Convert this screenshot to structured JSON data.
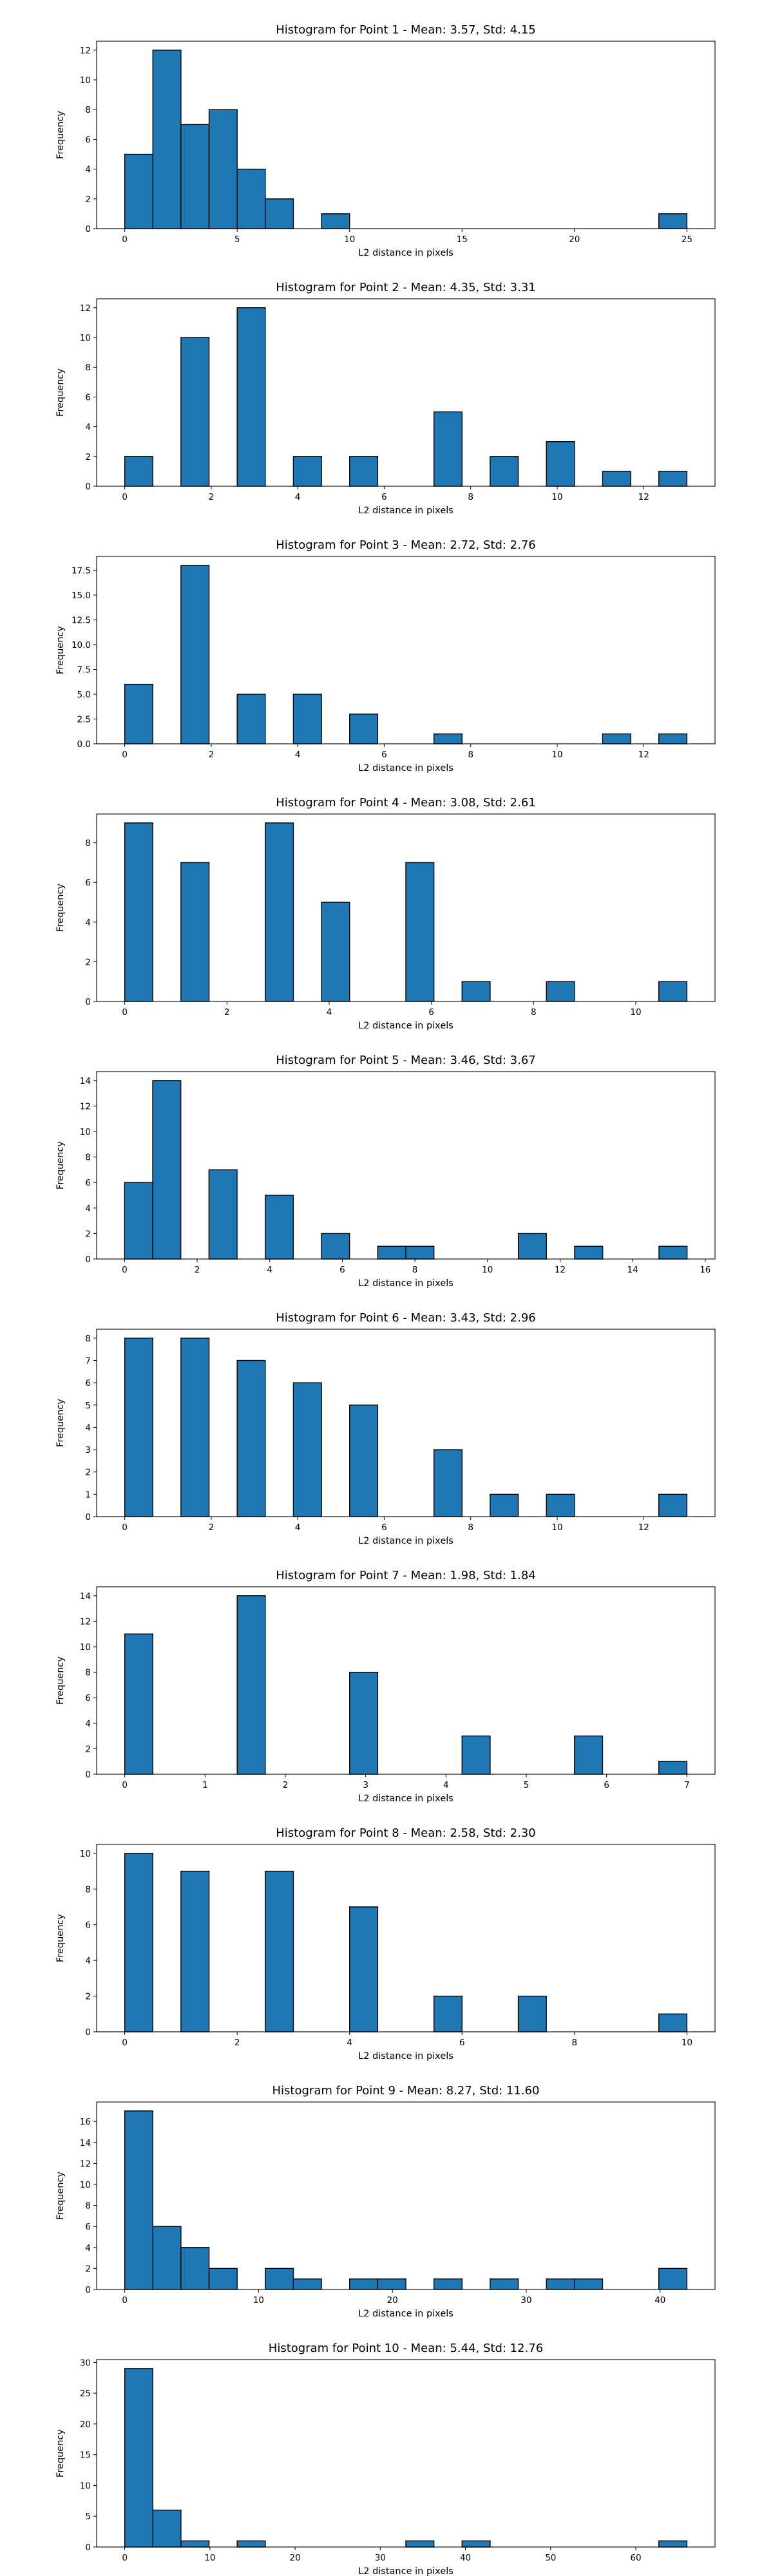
{
  "chart_data": [
    {
      "type": "bar",
      "title": "Histogram for Point 1 - Mean: 3.57, Std: 4.15",
      "xlabel": "L2 distance in pixels",
      "ylabel": "Frequency",
      "xlim": [
        -1.25,
        26.25
      ],
      "ylim": [
        0,
        12.6
      ],
      "xticks": [
        0,
        5,
        10,
        15,
        20,
        25
      ],
      "xtick_labels": [
        "0",
        "5",
        "10",
        "15",
        "20",
        "25"
      ],
      "yticks": [
        0,
        2,
        4,
        6,
        8,
        10,
        12
      ],
      "ytick_labels": [
        "0",
        "2",
        "4",
        "6",
        "8",
        "10",
        "12"
      ],
      "bins": [
        {
          "x0": 0,
          "x1": 1.25,
          "value": 5
        },
        {
          "x0": 1.25,
          "x1": 2.5,
          "value": 12
        },
        {
          "x0": 2.5,
          "x1": 3.75,
          "value": 7
        },
        {
          "x0": 3.75,
          "x1": 5,
          "value": 8
        },
        {
          "x0": 5,
          "x1": 6.25,
          "value": 4
        },
        {
          "x0": 6.25,
          "x1": 7.5,
          "value": 2
        },
        {
          "x0": 8.75,
          "x1": 10,
          "value": 1
        },
        {
          "x0": 23.75,
          "x1": 25,
          "value": 1
        }
      ]
    },
    {
      "type": "bar",
      "title": "Histogram for Point 2 - Mean: 4.35, Std: 3.31",
      "xlabel": "L2 distance in pixels",
      "ylabel": "Frequency",
      "xlim": [
        -0.65,
        13.65
      ],
      "ylim": [
        0,
        12.6
      ],
      "xticks": [
        0,
        2,
        4,
        6,
        8,
        10,
        12
      ],
      "xtick_labels": [
        "0",
        "2",
        "4",
        "6",
        "8",
        "10",
        "12"
      ],
      "yticks": [
        0,
        2,
        4,
        6,
        8,
        10,
        12
      ],
      "ytick_labels": [
        "0",
        "2",
        "4",
        "6",
        "8",
        "10",
        "12"
      ],
      "bins": [
        {
          "x0": 0,
          "x1": 0.65,
          "value": 2
        },
        {
          "x0": 1.3,
          "x1": 1.95,
          "value": 10
        },
        {
          "x0": 2.6,
          "x1": 3.25,
          "value": 12
        },
        {
          "x0": 3.9,
          "x1": 4.55,
          "value": 2
        },
        {
          "x0": 5.2,
          "x1": 5.85,
          "value": 2
        },
        {
          "x0": 7.15,
          "x1": 7.8,
          "value": 5
        },
        {
          "x0": 8.45,
          "x1": 9.1,
          "value": 2
        },
        {
          "x0": 9.75,
          "x1": 10.4,
          "value": 3
        },
        {
          "x0": 11.05,
          "x1": 11.7,
          "value": 1
        },
        {
          "x0": 12.35,
          "x1": 13,
          "value": 1
        }
      ]
    },
    {
      "type": "bar",
      "title": "Histogram for Point 3 - Mean: 2.72, Std: 2.76",
      "xlabel": "L2 distance in pixels",
      "ylabel": "Frequency",
      "xlim": [
        -0.65,
        13.65
      ],
      "ylim": [
        0,
        18.9
      ],
      "xticks": [
        0,
        2,
        4,
        6,
        8,
        10,
        12
      ],
      "xtick_labels": [
        "0",
        "2",
        "4",
        "6",
        "8",
        "10",
        "12"
      ],
      "yticks": [
        0,
        2.5,
        5,
        7.5,
        10,
        12.5,
        15,
        17.5
      ],
      "ytick_labels": [
        "0.0",
        "2.5",
        "5.0",
        "7.5",
        "10.0",
        "12.5",
        "15.0",
        "17.5"
      ],
      "bins": [
        {
          "x0": 0,
          "x1": 0.65,
          "value": 6
        },
        {
          "x0": 1.3,
          "x1": 1.95,
          "value": 18
        },
        {
          "x0": 2.6,
          "x1": 3.25,
          "value": 5
        },
        {
          "x0": 3.9,
          "x1": 4.55,
          "value": 5
        },
        {
          "x0": 5.2,
          "x1": 5.85,
          "value": 3
        },
        {
          "x0": 7.15,
          "x1": 7.8,
          "value": 1
        },
        {
          "x0": 11.05,
          "x1": 11.7,
          "value": 1
        },
        {
          "x0": 12.35,
          "x1": 13,
          "value": 1
        }
      ]
    },
    {
      "type": "bar",
      "title": "Histogram for Point 4 - Mean: 3.08, Std: 2.61",
      "xlabel": "L2 distance in pixels",
      "ylabel": "Frequency",
      "xlim": [
        -0.55,
        11.55
      ],
      "ylim": [
        0,
        9.45
      ],
      "xticks": [
        0,
        2,
        4,
        6,
        8,
        10
      ],
      "xtick_labels": [
        "0",
        "2",
        "4",
        "6",
        "8",
        "10"
      ],
      "yticks": [
        0,
        2,
        4,
        6,
        8
      ],
      "ytick_labels": [
        "0",
        "2",
        "4",
        "6",
        "8"
      ],
      "bins": [
        {
          "x0": 0,
          "x1": 0.55,
          "value": 9
        },
        {
          "x0": 1.1,
          "x1": 1.65,
          "value": 7
        },
        {
          "x0": 2.75,
          "x1": 3.3,
          "value": 9
        },
        {
          "x0": 3.85,
          "x1": 4.4,
          "value": 5
        },
        {
          "x0": 5.5,
          "x1": 6.05,
          "value": 7
        },
        {
          "x0": 6.6,
          "x1": 7.15,
          "value": 1
        },
        {
          "x0": 8.25,
          "x1": 8.8,
          "value": 1
        },
        {
          "x0": 10.45,
          "x1": 11,
          "value": 1
        }
      ]
    },
    {
      "type": "bar",
      "title": "Histogram for Point 5 - Mean: 3.46, Std: 3.67",
      "xlabel": "L2 distance in pixels",
      "ylabel": "Frequency",
      "xlim": [
        -0.77,
        16.27
      ],
      "ylim": [
        0,
        14.7
      ],
      "xticks": [
        0,
        2,
        4,
        6,
        8,
        10,
        12,
        14,
        16
      ],
      "xtick_labels": [
        "0",
        "2",
        "4",
        "6",
        "8",
        "10",
        "12",
        "14",
        "16"
      ],
      "yticks": [
        0,
        2,
        4,
        6,
        8,
        10,
        12,
        14
      ],
      "ytick_labels": [
        "0",
        "2",
        "4",
        "6",
        "8",
        "10",
        "12",
        "14"
      ],
      "bins": [
        {
          "x0": 0,
          "x1": 0.775,
          "value": 6
        },
        {
          "x0": 0.775,
          "x1": 1.55,
          "value": 14
        },
        {
          "x0": 2.325,
          "x1": 3.1,
          "value": 7
        },
        {
          "x0": 3.875,
          "x1": 4.65,
          "value": 5
        },
        {
          "x0": 5.425,
          "x1": 6.2,
          "value": 2
        },
        {
          "x0": 6.975,
          "x1": 7.75,
          "value": 1
        },
        {
          "x0": 7.75,
          "x1": 8.525,
          "value": 1
        },
        {
          "x0": 10.85,
          "x1": 11.625,
          "value": 2
        },
        {
          "x0": 12.4,
          "x1": 13.175,
          "value": 1
        },
        {
          "x0": 14.725,
          "x1": 15.5,
          "value": 1
        }
      ]
    },
    {
      "type": "bar",
      "title": "Histogram for Point 6 - Mean: 3.43, Std: 2.96",
      "xlabel": "L2 distance in pixels",
      "ylabel": "Frequency",
      "xlim": [
        -0.65,
        13.65
      ],
      "ylim": [
        0,
        8.4
      ],
      "xticks": [
        0,
        2,
        4,
        6,
        8,
        10,
        12
      ],
      "xtick_labels": [
        "0",
        "2",
        "4",
        "6",
        "8",
        "10",
        "12"
      ],
      "yticks": [
        0,
        1,
        2,
        3,
        4,
        5,
        6,
        7,
        8
      ],
      "ytick_labels": [
        "0",
        "1",
        "2",
        "3",
        "4",
        "5",
        "6",
        "7",
        "8"
      ],
      "bins": [
        {
          "x0": 0,
          "x1": 0.65,
          "value": 8
        },
        {
          "x0": 1.3,
          "x1": 1.95,
          "value": 8
        },
        {
          "x0": 2.6,
          "x1": 3.25,
          "value": 7
        },
        {
          "x0": 3.9,
          "x1": 4.55,
          "value": 6
        },
        {
          "x0": 5.2,
          "x1": 5.85,
          "value": 5
        },
        {
          "x0": 7.15,
          "x1": 7.8,
          "value": 3
        },
        {
          "x0": 8.45,
          "x1": 9.1,
          "value": 1
        },
        {
          "x0": 9.75,
          "x1": 10.4,
          "value": 1
        },
        {
          "x0": 12.35,
          "x1": 13,
          "value": 1
        }
      ]
    },
    {
      "type": "bar",
      "title": "Histogram for Point 7 - Mean: 1.98, Std: 1.84",
      "xlabel": "L2 distance in pixels",
      "ylabel": "Frequency",
      "xlim": [
        -0.35,
        7.35
      ],
      "ylim": [
        0,
        14.7
      ],
      "xticks": [
        0,
        1,
        2,
        3,
        4,
        5,
        6,
        7
      ],
      "xtick_labels": [
        "0",
        "1",
        "2",
        "3",
        "4",
        "5",
        "6",
        "7"
      ],
      "yticks": [
        0,
        2,
        4,
        6,
        8,
        10,
        12,
        14
      ],
      "ytick_labels": [
        "0",
        "2",
        "4",
        "6",
        "8",
        "10",
        "12",
        "14"
      ],
      "bins": [
        {
          "x0": 0,
          "x1": 0.35,
          "value": 11
        },
        {
          "x0": 1.4,
          "x1": 1.75,
          "value": 14
        },
        {
          "x0": 2.8,
          "x1": 3.15,
          "value": 8
        },
        {
          "x0": 4.2,
          "x1": 4.55,
          "value": 3
        },
        {
          "x0": 5.6,
          "x1": 5.95,
          "value": 3
        },
        {
          "x0": 6.65,
          "x1": 7,
          "value": 1
        }
      ]
    },
    {
      "type": "bar",
      "title": "Histogram for Point 8 - Mean: 2.58, Std: 2.30",
      "xlabel": "L2 distance in pixels",
      "ylabel": "Frequency",
      "xlim": [
        -0.5,
        10.5
      ],
      "ylim": [
        0,
        10.5
      ],
      "xticks": [
        0,
        2,
        4,
        6,
        8,
        10
      ],
      "xtick_labels": [
        "0",
        "2",
        "4",
        "6",
        "8",
        "10"
      ],
      "yticks": [
        0,
        2,
        4,
        6,
        8,
        10
      ],
      "ytick_labels": [
        "0",
        "2",
        "4",
        "6",
        "8",
        "10"
      ],
      "bins": [
        {
          "x0": 0,
          "x1": 0.5,
          "value": 10
        },
        {
          "x0": 1,
          "x1": 1.5,
          "value": 9
        },
        {
          "x0": 2.5,
          "x1": 3,
          "value": 9
        },
        {
          "x0": 4,
          "x1": 4.5,
          "value": 7
        },
        {
          "x0": 5.5,
          "x1": 6,
          "value": 2
        },
        {
          "x0": 7,
          "x1": 7.5,
          "value": 2
        },
        {
          "x0": 9.5,
          "x1": 10,
          "value": 1
        }
      ]
    },
    {
      "type": "bar",
      "title": "Histogram for Point 9 - Mean: 8.27, Std: 11.60",
      "xlabel": "L2 distance in pixels",
      "ylabel": "Frequency",
      "xlim": [
        -2.1,
        44.1
      ],
      "ylim": [
        0,
        17.85
      ],
      "xticks": [
        0,
        10,
        20,
        30,
        40
      ],
      "xtick_labels": [
        "0",
        "10",
        "20",
        "30",
        "40"
      ],
      "yticks": [
        0,
        2,
        4,
        6,
        8,
        10,
        12,
        14,
        16
      ],
      "ytick_labels": [
        "0",
        "2",
        "4",
        "6",
        "8",
        "10",
        "12",
        "14",
        "16"
      ],
      "bins": [
        {
          "x0": 0,
          "x1": 2.1,
          "value": 17
        },
        {
          "x0": 2.1,
          "x1": 4.2,
          "value": 6
        },
        {
          "x0": 4.2,
          "x1": 6.3,
          "value": 4
        },
        {
          "x0": 6.3,
          "x1": 8.4,
          "value": 2
        },
        {
          "x0": 10.5,
          "x1": 12.6,
          "value": 2
        },
        {
          "x0": 12.6,
          "x1": 14.7,
          "value": 1
        },
        {
          "x0": 16.8,
          "x1": 18.9,
          "value": 1
        },
        {
          "x0": 18.9,
          "x1": 21,
          "value": 1
        },
        {
          "x0": 23.1,
          "x1": 25.2,
          "value": 1
        },
        {
          "x0": 27.3,
          "x1": 29.4,
          "value": 1
        },
        {
          "x0": 31.5,
          "x1": 33.6,
          "value": 1
        },
        {
          "x0": 33.6,
          "x1": 35.7,
          "value": 1
        },
        {
          "x0": 39.9,
          "x1": 42,
          "value": 2
        }
      ]
    },
    {
      "type": "bar",
      "title": "Histogram for Point 10 - Mean: 5.44, Std: 12.76",
      "xlabel": "L2 distance in pixels",
      "ylabel": "Frequency",
      "xlim": [
        -3.3,
        69.3
      ],
      "ylim": [
        0,
        30.45
      ],
      "xticks": [
        0,
        10,
        20,
        30,
        40,
        50,
        60
      ],
      "xtick_labels": [
        "0",
        "10",
        "20",
        "30",
        "40",
        "50",
        "60"
      ],
      "yticks": [
        0,
        5,
        10,
        15,
        20,
        25,
        30
      ],
      "ytick_labels": [
        "0",
        "5",
        "10",
        "15",
        "20",
        "25",
        "30"
      ],
      "bins": [
        {
          "x0": 0,
          "x1": 3.3,
          "value": 29
        },
        {
          "x0": 3.3,
          "x1": 6.6,
          "value": 6
        },
        {
          "x0": 6.6,
          "x1": 9.9,
          "value": 1
        },
        {
          "x0": 13.2,
          "x1": 16.5,
          "value": 1
        },
        {
          "x0": 33,
          "x1": 36.3,
          "value": 1
        },
        {
          "x0": 39.6,
          "x1": 42.9,
          "value": 1
        },
        {
          "x0": 62.7,
          "x1": 66,
          "value": 1
        }
      ]
    }
  ],
  "style": {
    "bar_fill": "#1f77b4",
    "bar_edge": "#000000",
    "axis_color": "#000000"
  }
}
